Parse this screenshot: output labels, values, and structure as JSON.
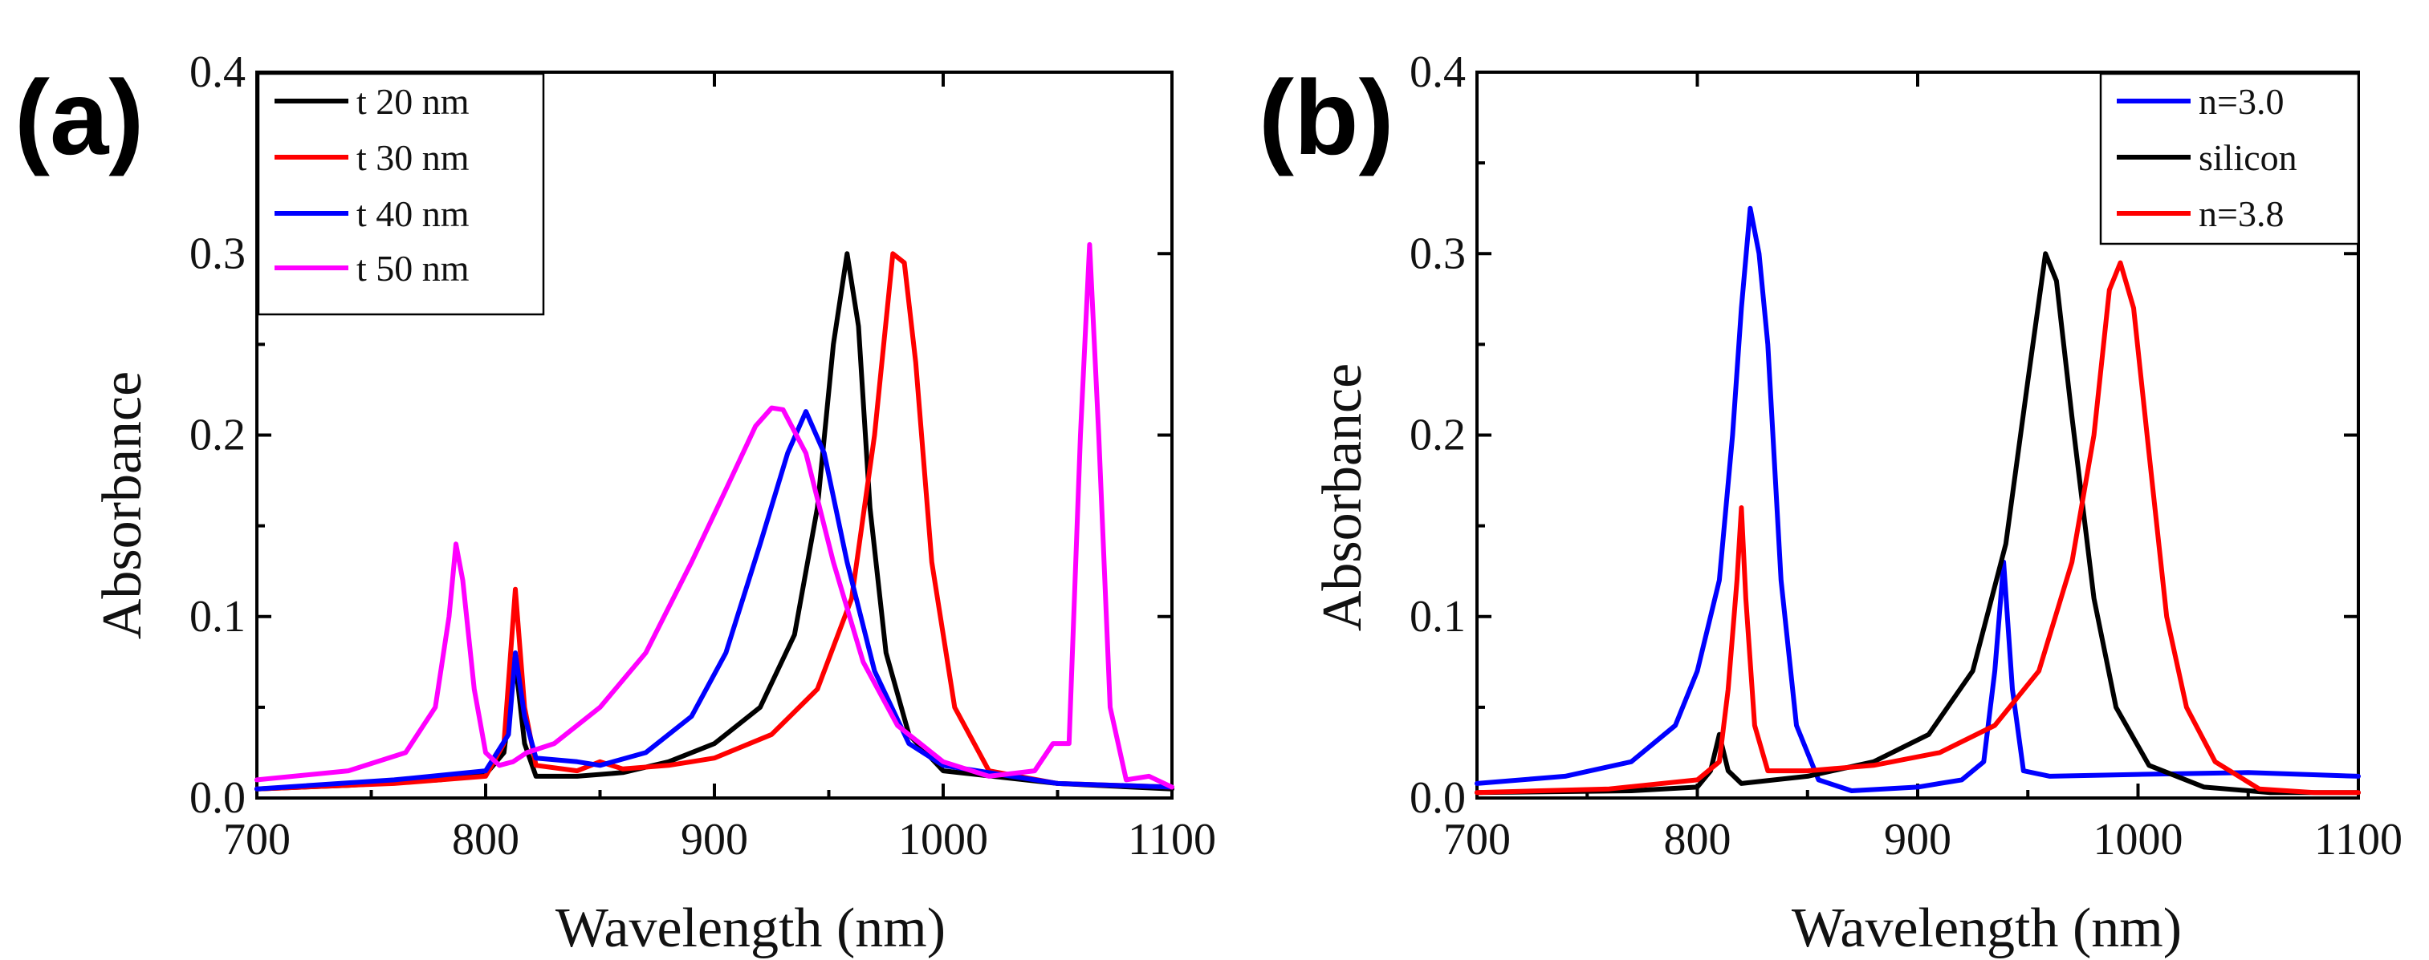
{
  "chart_data": [
    {
      "type": "line",
      "panel_label": "(a)",
      "xlabel": "Wavelength (nm)",
      "ylabel": "Absorbance",
      "xlim": [
        700,
        1100
      ],
      "ylim": [
        0,
        0.4
      ],
      "xticks": [
        700,
        800,
        900,
        1000,
        1100
      ],
      "xtick_labels": [
        "700",
        "800",
        "900",
        "1000",
        "1100"
      ],
      "yticks": [
        0,
        0.1,
        0.2,
        0.3,
        0.4
      ],
      "ytick_labels": [
        "0.0",
        "0.1",
        "0.2",
        "0.3",
        "0.4"
      ],
      "legend_position": "top-left",
      "series": [
        {
          "name": "t 20 nm",
          "color": "#000000",
          "points": [
            [
              700,
              0.005
            ],
            [
              740,
              0.007
            ],
            [
              780,
              0.01
            ],
            [
              800,
              0.013
            ],
            [
              808,
              0.025
            ],
            [
              813,
              0.075
            ],
            [
              817,
              0.03
            ],
            [
              822,
              0.012
            ],
            [
              840,
              0.012
            ],
            [
              860,
              0.014
            ],
            [
              880,
              0.02
            ],
            [
              900,
              0.03
            ],
            [
              920,
              0.05
            ],
            [
              935,
              0.09
            ],
            [
              945,
              0.16
            ],
            [
              952,
              0.25
            ],
            [
              958,
              0.3
            ],
            [
              963,
              0.26
            ],
            [
              968,
              0.16
            ],
            [
              975,
              0.08
            ],
            [
              985,
              0.035
            ],
            [
              1000,
              0.015
            ],
            [
              1050,
              0.008
            ],
            [
              1100,
              0.005
            ]
          ]
        },
        {
          "name": "t 30 nm",
          "color": "#ff0000",
          "points": [
            [
              700,
              0.005
            ],
            [
              760,
              0.008
            ],
            [
              800,
              0.012
            ],
            [
              808,
              0.03
            ],
            [
              813,
              0.115
            ],
            [
              817,
              0.05
            ],
            [
              822,
              0.018
            ],
            [
              840,
              0.015
            ],
            [
              850,
              0.02
            ],
            [
              860,
              0.016
            ],
            [
              880,
              0.018
            ],
            [
              900,
              0.022
            ],
            [
              925,
              0.035
            ],
            [
              945,
              0.06
            ],
            [
              960,
              0.11
            ],
            [
              970,
              0.2
            ],
            [
              978,
              0.3
            ],
            [
              983,
              0.295
            ],
            [
              988,
              0.24
            ],
            [
              995,
              0.13
            ],
            [
              1005,
              0.05
            ],
            [
              1020,
              0.015
            ],
            [
              1050,
              0.008
            ],
            [
              1100,
              0.006
            ]
          ]
        },
        {
          "name": "t 40 nm",
          "color": "#0000ff",
          "points": [
            [
              700,
              0.005
            ],
            [
              760,
              0.01
            ],
            [
              800,
              0.015
            ],
            [
              810,
              0.035
            ],
            [
              813,
              0.08
            ],
            [
              817,
              0.045
            ],
            [
              822,
              0.022
            ],
            [
              840,
              0.02
            ],
            [
              850,
              0.018
            ],
            [
              870,
              0.025
            ],
            [
              890,
              0.045
            ],
            [
              905,
              0.08
            ],
            [
              920,
              0.14
            ],
            [
              932,
              0.19
            ],
            [
              940,
              0.213
            ],
            [
              948,
              0.19
            ],
            [
              958,
              0.13
            ],
            [
              970,
              0.07
            ],
            [
              985,
              0.03
            ],
            [
              1000,
              0.018
            ],
            [
              1050,
              0.008
            ],
            [
              1100,
              0.006
            ]
          ]
        },
        {
          "name": "t 50 nm",
          "color": "#ff00ff",
          "points": [
            [
              700,
              0.01
            ],
            [
              740,
              0.015
            ],
            [
              765,
              0.025
            ],
            [
              778,
              0.05
            ],
            [
              784,
              0.1
            ],
            [
              787,
              0.14
            ],
            [
              790,
              0.12
            ],
            [
              795,
              0.06
            ],
            [
              800,
              0.025
            ],
            [
              806,
              0.018
            ],
            [
              812,
              0.02
            ],
            [
              818,
              0.025
            ],
            [
              830,
              0.03
            ],
            [
              850,
              0.05
            ],
            [
              870,
              0.08
            ],
            [
              890,
              0.13
            ],
            [
              905,
              0.17
            ],
            [
              918,
              0.205
            ],
            [
              925,
              0.215
            ],
            [
              930,
              0.214
            ],
            [
              940,
              0.19
            ],
            [
              952,
              0.13
            ],
            [
              965,
              0.075
            ],
            [
              980,
              0.04
            ],
            [
              1000,
              0.02
            ],
            [
              1020,
              0.012
            ],
            [
              1040,
              0.015
            ],
            [
              1048,
              0.03
            ],
            [
              1055,
              0.03
            ],
            [
              1060,
              0.2
            ],
            [
              1064,
              0.305
            ],
            [
              1068,
              0.2
            ],
            [
              1073,
              0.05
            ],
            [
              1080,
              0.01
            ],
            [
              1090,
              0.012
            ],
            [
              1100,
              0.006
            ]
          ]
        }
      ]
    },
    {
      "type": "line",
      "panel_label": "(b)",
      "xlabel": "Wavelength (nm)",
      "ylabel": "Absorbance",
      "xlim": [
        700,
        1100
      ],
      "ylim": [
        0,
        0.4
      ],
      "xticks": [
        700,
        800,
        900,
        1000,
        1100
      ],
      "xtick_labels": [
        "700",
        "800",
        "900",
        "1000",
        "1100"
      ],
      "yticks": [
        0,
        0.1,
        0.2,
        0.3,
        0.4
      ],
      "ytick_labels": [
        "0.0",
        "0.1",
        "0.2",
        "0.3",
        "0.4"
      ],
      "legend_position": "top-right",
      "series": [
        {
          "name": "n=3.0",
          "color": "#0000ff",
          "points": [
            [
              700,
              0.008
            ],
            [
              740,
              0.012
            ],
            [
              770,
              0.02
            ],
            [
              790,
              0.04
            ],
            [
              800,
              0.07
            ],
            [
              810,
              0.12
            ],
            [
              816,
              0.2
            ],
            [
              820,
              0.27
            ],
            [
              824,
              0.325
            ],
            [
              828,
              0.3
            ],
            [
              832,
              0.25
            ],
            [
              838,
              0.12
            ],
            [
              845,
              0.04
            ],
            [
              855,
              0.01
            ],
            [
              870,
              0.004
            ],
            [
              900,
              0.006
            ],
            [
              920,
              0.01
            ],
            [
              930,
              0.02
            ],
            [
              935,
              0.07
            ],
            [
              939,
              0.13
            ],
            [
              943,
              0.06
            ],
            [
              948,
              0.015
            ],
            [
              960,
              0.012
            ],
            [
              1000,
              0.013
            ],
            [
              1050,
              0.014
            ],
            [
              1100,
              0.012
            ]
          ]
        },
        {
          "name": "silicon",
          "color": "#000000",
          "points": [
            [
              700,
              0.003
            ],
            [
              770,
              0.004
            ],
            [
              800,
              0.006
            ],
            [
              806,
              0.015
            ],
            [
              810,
              0.035
            ],
            [
              814,
              0.015
            ],
            [
              820,
              0.008
            ],
            [
              850,
              0.012
            ],
            [
              880,
              0.02
            ],
            [
              905,
              0.035
            ],
            [
              925,
              0.07
            ],
            [
              940,
              0.14
            ],
            [
              950,
              0.23
            ],
            [
              958,
              0.3
            ],
            [
              963,
              0.285
            ],
            [
              970,
              0.21
            ],
            [
              980,
              0.11
            ],
            [
              990,
              0.05
            ],
            [
              1005,
              0.018
            ],
            [
              1030,
              0.006
            ],
            [
              1060,
              0.003
            ],
            [
              1100,
              0.003
            ]
          ]
        },
        {
          "name": "n=3.8",
          "color": "#ff0000",
          "points": [
            [
              700,
              0.003
            ],
            [
              760,
              0.005
            ],
            [
              800,
              0.01
            ],
            [
              810,
              0.02
            ],
            [
              814,
              0.06
            ],
            [
              818,
              0.12
            ],
            [
              820,
              0.16
            ],
            [
              822,
              0.11
            ],
            [
              826,
              0.04
            ],
            [
              832,
              0.015
            ],
            [
              850,
              0.015
            ],
            [
              880,
              0.018
            ],
            [
              910,
              0.025
            ],
            [
              935,
              0.04
            ],
            [
              955,
              0.07
            ],
            [
              970,
              0.13
            ],
            [
              980,
              0.2
            ],
            [
              987,
              0.28
            ],
            [
              992,
              0.295
            ],
            [
              998,
              0.27
            ],
            [
              1005,
              0.19
            ],
            [
              1013,
              0.1
            ],
            [
              1022,
              0.05
            ],
            [
              1035,
              0.02
            ],
            [
              1055,
              0.005
            ],
            [
              1080,
              0.003
            ],
            [
              1100,
              0.003
            ]
          ]
        }
      ]
    }
  ]
}
